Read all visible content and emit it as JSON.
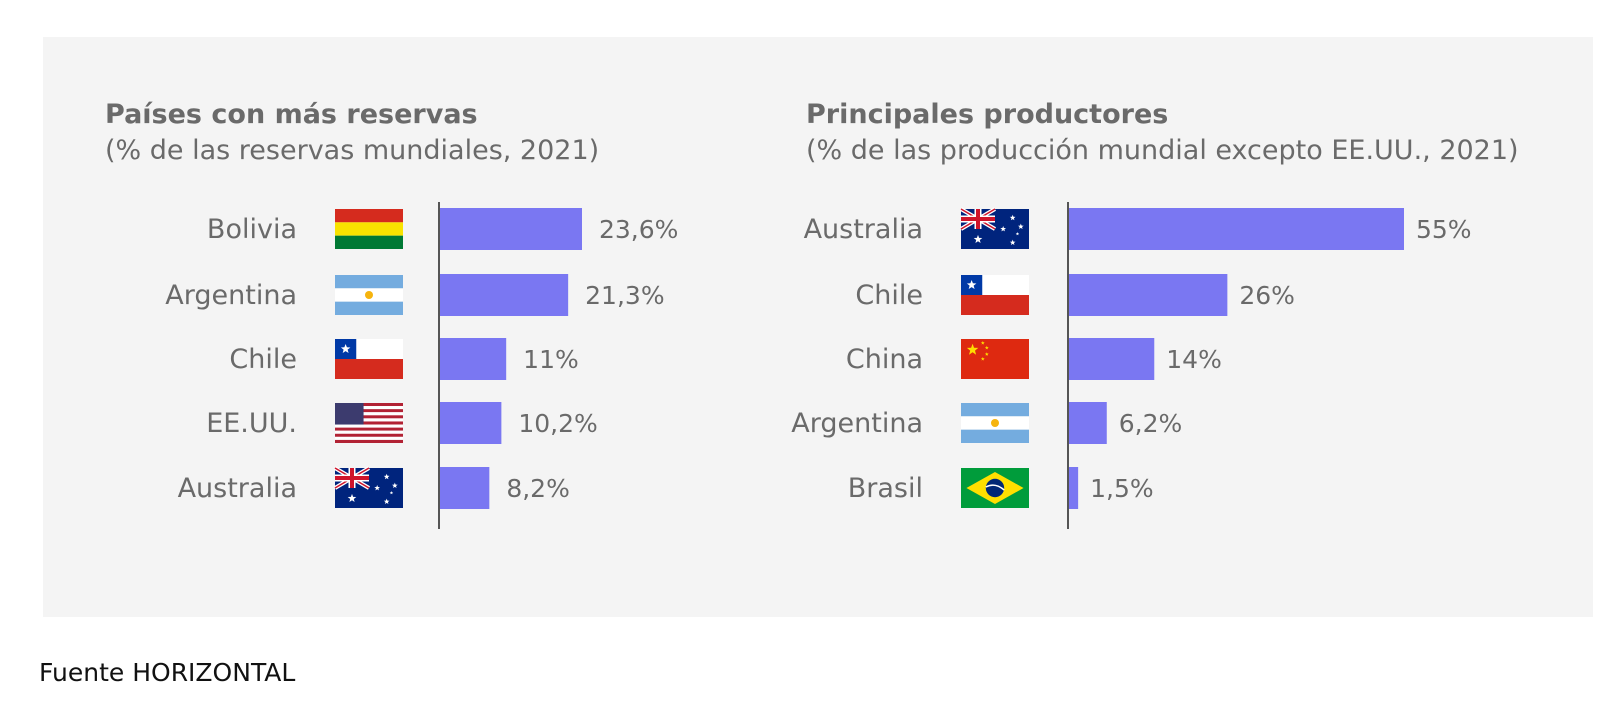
{
  "colors": {
    "bar": "#7a77f2",
    "panel": "#f4f4f4",
    "text": "#6a6a6a"
  },
  "chart_data": [
    {
      "type": "bar",
      "orientation": "horizontal",
      "title": "Países con más reservas",
      "subtitle": "(% de las reservas mundiales, 2021)",
      "categories": [
        "Bolivia",
        "Argentina",
        "Chile",
        "EE.UU.",
        "Australia"
      ],
      "flags": [
        "flag-bolivia-icon",
        "flag-argentina-icon",
        "flag-chile-icon",
        "flag-usa-icon",
        "flag-australia-icon"
      ],
      "values": [
        23.6,
        21.3,
        11,
        10.2,
        8.2
      ],
      "value_labels": [
        "23,6%",
        "21,3%",
        "11%",
        "10,2%",
        "8,2%"
      ],
      "xlim": [
        0,
        23.6
      ],
      "grid": false
    },
    {
      "type": "bar",
      "orientation": "horizontal",
      "title": "Principales productores",
      "subtitle": "(% de las producción mundial excepto EE.UU., 2021)",
      "categories": [
        "Australia",
        "Chile",
        "China",
        "Argentina",
        "Brasil"
      ],
      "flags": [
        "flag-australia-icon",
        "flag-chile-icon",
        "flag-china-icon",
        "flag-argentina-icon",
        "flag-brazil-icon"
      ],
      "values": [
        55,
        26,
        14,
        6.2,
        1.5
      ],
      "value_labels": [
        "55%",
        "26%",
        "14%",
        "6,2%",
        "1,5%"
      ],
      "xlim": [
        0,
        55
      ],
      "grid": false
    }
  ],
  "footer": {
    "text": "Fuente HORIZONTAL"
  }
}
